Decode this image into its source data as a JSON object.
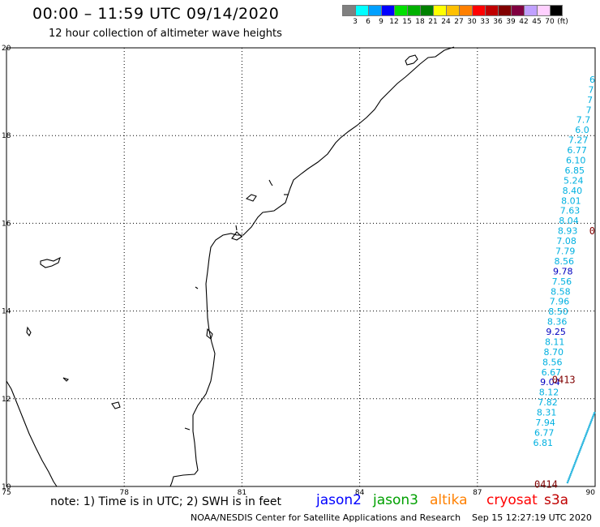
{
  "header": {
    "title": "00:00 – 11:59 UTC 09/14/2020",
    "subtitle": "12 hour collection of altimeter wave heights"
  },
  "colorbar": {
    "colors": [
      "#808080",
      "#00ffff",
      "#00a0ff",
      "#0000ff",
      "#00e000",
      "#00b000",
      "#008000",
      "#ffff00",
      "#ffc000",
      "#ff8000",
      "#ff0000",
      "#c00000",
      "#800000",
      "#800040",
      "#c0a0ff",
      "#ffd0ff",
      "#000000"
    ],
    "labels": [
      "3",
      "6",
      "9",
      "12",
      "15",
      "18",
      "21",
      "24",
      "27",
      "30",
      "33",
      "36",
      "39",
      "42",
      "45",
      "70",
      "(ft)"
    ]
  },
  "axes": {
    "lon_labels": [
      "75",
      "78",
      "81",
      "84",
      "87",
      "90"
    ],
    "lat_labels": [
      "10",
      "12",
      "14",
      "16",
      "18",
      "20"
    ],
    "lon_range": [
      75,
      90
    ],
    "lat_range": [
      10,
      20
    ]
  },
  "observations": [
    {
      "lat": 19.28,
      "value": "6",
      "color": "#00b0e0"
    },
    {
      "lat": 19.05,
      "value": "7",
      "color": "#00b0e0"
    },
    {
      "lat": 18.82,
      "value": "7",
      "color": "#00b0e0"
    },
    {
      "lat": 18.59,
      "value": "7",
      "color": "#00b0e0"
    },
    {
      "lat": 18.36,
      "value": "7.7",
      "color": "#00b0e0"
    },
    {
      "lat": 18.13,
      "value": "6.0",
      "color": "#00b0e0"
    },
    {
      "lat": 17.9,
      "value": "7.27",
      "color": "#00b0e0"
    },
    {
      "lat": 17.67,
      "value": "6.77",
      "color": "#00b0e0"
    },
    {
      "lat": 17.44,
      "value": "6.10",
      "color": "#00b0e0"
    },
    {
      "lat": 17.21,
      "value": "6.85",
      "color": "#00b0e0"
    },
    {
      "lat": 16.98,
      "value": "5.24",
      "color": "#00b0e0"
    },
    {
      "lat": 16.75,
      "value": "8.40",
      "color": "#00b0e0"
    },
    {
      "lat": 16.52,
      "value": "8.01",
      "color": "#00b0e0"
    },
    {
      "lat": 16.29,
      "value": "7.63",
      "color": "#00b0e0"
    },
    {
      "lat": 16.06,
      "value": "8.04",
      "color": "#00b0e0"
    },
    {
      "lat": 15.83,
      "value": "8.93",
      "color": "#00b0e0"
    },
    {
      "lat": 15.6,
      "value": "7.08",
      "color": "#00b0e0"
    },
    {
      "lat": 15.37,
      "value": "7.79",
      "color": "#00b0e0"
    },
    {
      "lat": 15.14,
      "value": "8.56",
      "color": "#00b0e0"
    },
    {
      "lat": 14.91,
      "value": "9.78",
      "color": "#0000c0"
    },
    {
      "lat": 14.68,
      "value": "7.56",
      "color": "#00b0e0"
    },
    {
      "lat": 14.45,
      "value": "8.58",
      "color": "#00b0e0"
    },
    {
      "lat": 14.22,
      "value": "7.96",
      "color": "#00b0e0"
    },
    {
      "lat": 13.99,
      "value": "8.50",
      "color": "#00b0e0"
    },
    {
      "lat": 13.76,
      "value": "8.36",
      "color": "#00b0e0"
    },
    {
      "lat": 13.53,
      "value": "9.25",
      "color": "#0000c0"
    },
    {
      "lat": 13.3,
      "value": "8.11",
      "color": "#00b0e0"
    },
    {
      "lat": 13.07,
      "value": "8.70",
      "color": "#00b0e0"
    },
    {
      "lat": 12.84,
      "value": "8.56",
      "color": "#00b0e0"
    },
    {
      "lat": 12.61,
      "value": "6.67",
      "color": "#00b0e0"
    },
    {
      "lat": 12.38,
      "value": "9.04",
      "color": "#0000c0"
    },
    {
      "lat": 12.15,
      "value": "8.12",
      "color": "#00b0e0"
    },
    {
      "lat": 11.92,
      "value": "7.82",
      "color": "#00b0e0"
    },
    {
      "lat": 11.69,
      "value": "8.31",
      "color": "#00b0e0"
    },
    {
      "lat": 11.46,
      "value": "7.94",
      "color": "#00b0e0"
    },
    {
      "lat": 11.23,
      "value": "6.77",
      "color": "#00b0e0"
    },
    {
      "lat": 11.0,
      "value": "6.81",
      "color": "#00b0e0"
    }
  ],
  "time_markers": [
    {
      "text": "0413",
      "lon": 88.9,
      "lat": 12.43
    },
    {
      "text": "0414",
      "lon": 88.45,
      "lat": 10.05
    },
    {
      "text": "0",
      "lon": 89.85,
      "lat": 15.82
    }
  ],
  "footer": {
    "note": "note: 1) Time is in UTC; 2) SWH is in feet",
    "satellites": [
      {
        "name": "jason2",
        "color": "#0000ff"
      },
      {
        "name": "jason3",
        "color": "#00a000"
      },
      {
        "name": "altika",
        "color": "#ff8000"
      },
      {
        "name": "cryosat",
        "color": "#ff0000"
      },
      {
        "name": "s3a",
        "color": "#c00000"
      }
    ],
    "credit": "NOAA/NESDIS Center for Satellite Applications and Research",
    "timestamp": "Sep 15 12:27:19 UTC 2020"
  }
}
